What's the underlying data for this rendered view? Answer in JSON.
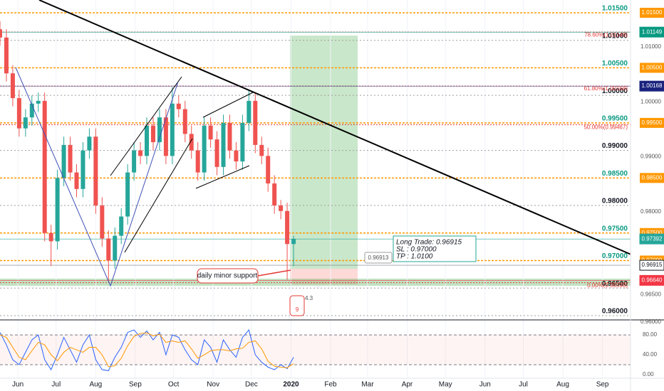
{
  "chart_data": {
    "type": "candlestick",
    "x": [
      -228,
      -223,
      -218,
      -213,
      -208,
      -203,
      -198,
      -193,
      -188,
      -183,
      -178,
      -173,
      -168,
      -163,
      -158,
      -153,
      -148,
      -143,
      -138,
      -133,
      -128,
      -123,
      -118,
      -113,
      -108,
      -103,
      -98,
      -93,
      -88,
      -83,
      -78,
      -73,
      -68,
      -63,
      -58,
      -53,
      -48,
      -43,
      -38,
      -33,
      -28,
      -23,
      -18,
      -13,
      -8,
      -3,
      2
    ],
    "open": [
      1.012,
      1.0105,
      1.004,
      0.9995,
      0.994,
      0.996,
      0.9985,
      0.999,
      0.975,
      0.9735,
      0.985,
      0.991,
      0.986,
      0.983,
      0.99,
      0.9925,
      0.98,
      0.974,
      0.97,
      0.9745,
      0.978,
      0.986,
      0.99,
      0.989,
      0.9945,
      0.9915,
      0.996,
      0.989,
      0.9985,
      0.9975,
      0.993,
      0.99,
      0.986,
      0.9945,
      0.992,
      0.987,
      0.995,
      0.99,
      0.988,
      0.995,
      0.999,
      0.991,
      0.989,
      0.984,
      0.98,
      0.979,
      0.973
    ],
    "high": [
      1.0135,
      1.012,
      1.0055,
      1.001,
      0.9975,
      1.0,
      1.0005,
      1.0005,
      0.9765,
      0.9865,
      0.9925,
      0.9925,
      0.9875,
      0.9915,
      0.994,
      0.994,
      0.9815,
      0.9755,
      0.976,
      0.9795,
      0.9875,
      0.9915,
      0.9915,
      0.996,
      0.996,
      0.9975,
      0.9975,
      1.0015,
      1.0,
      0.999,
      0.9945,
      0.9915,
      0.996,
      0.996,
      0.9935,
      0.9965,
      0.9965,
      0.9915,
      0.9965,
      1.001,
      1.0005,
      0.9925,
      0.9905,
      0.9855,
      0.981,
      0.9805,
      0.9745
    ],
    "low": [
      1.009,
      1.0025,
      0.998,
      0.9925,
      0.9925,
      0.9945,
      0.997,
      0.9735,
      0.969,
      0.972,
      0.9835,
      0.9845,
      0.9815,
      0.9815,
      0.9885,
      0.9785,
      0.9725,
      0.9662,
      0.9685,
      0.973,
      0.9765,
      0.9845,
      0.9875,
      0.9875,
      0.99,
      0.99,
      0.9875,
      0.9875,
      0.996,
      0.9915,
      0.9885,
      0.9845,
      0.9845,
      0.9905,
      0.9855,
      0.9855,
      0.9885,
      0.9865,
      0.9865,
      0.9935,
      0.9895,
      0.9875,
      0.9825,
      0.9785,
      0.9775,
      0.9665,
      0.969
    ],
    "close": [
      1.0105,
      1.004,
      0.9995,
      0.994,
      0.996,
      0.9985,
      0.999,
      0.975,
      0.9735,
      0.985,
      0.991,
      0.986,
      0.983,
      0.99,
      0.9925,
      0.98,
      0.974,
      0.97,
      0.9745,
      0.978,
      0.986,
      0.99,
      0.989,
      0.9945,
      0.9915,
      0.996,
      0.989,
      0.9985,
      0.9975,
      0.993,
      0.99,
      0.986,
      0.9945,
      0.992,
      0.987,
      0.995,
      0.99,
      0.988,
      0.995,
      0.999,
      0.991,
      0.989,
      0.984,
      0.98,
      0.979,
      0.973,
      0.9739
    ],
    "up_color": "#26a69a",
    "down_color": "#ef5350",
    "xlim": [
      -228,
      266
    ],
    "xticks": [
      {
        "value": -214,
        "label": "Jun"
      },
      {
        "value": -184,
        "label": "Jul"
      },
      {
        "value": -153,
        "label": "Aug"
      },
      {
        "value": -122,
        "label": "Sep"
      },
      {
        "value": -92,
        "label": "Oct"
      },
      {
        "value": -61,
        "label": "Nov"
      },
      {
        "value": -31,
        "label": "Dec"
      },
      {
        "value": 0,
        "label": "2020"
      },
      {
        "value": 31,
        "label": "Feb"
      },
      {
        "value": 60,
        "label": "Mar"
      },
      {
        "value": 91,
        "label": "Apr"
      },
      {
        "value": 121,
        "label": "May"
      },
      {
        "value": 152,
        "label": "Jun"
      },
      {
        "value": 182,
        "label": "Jul"
      },
      {
        "value": 213,
        "label": "Aug"
      },
      {
        "value": 244,
        "label": "Sep"
      }
    ],
    "ylim": [
      0.95922,
      1.01732
    ],
    "yticks": [
      {
        "value": 1.01,
        "label": "1.01000"
      },
      {
        "value": 1.0,
        "label": "1.00000"
      },
      {
        "value": 0.99,
        "label": "0.99000"
      },
      {
        "value": 0.98,
        "label": "0.98000"
      },
      {
        "value": 0.965,
        "label": "0.96500"
      },
      {
        "value": 0.96,
        "label": "0.96000"
      }
    ],
    "grid": true,
    "levels": [
      {
        "value": 1.015,
        "label": "1.01500"
      },
      {
        "value": 1.005,
        "label": "1.00500"
      },
      {
        "value": 0.995,
        "label": "0.99500"
      },
      {
        "value": 0.985,
        "label": "0.98500"
      },
      {
        "value": 0.975,
        "label": "0.97500"
      },
      {
        "value": 0.97,
        "label": "0.97000"
      }
    ],
    "level_color": "#ff9800",
    "fibs": [
      {
        "value": 1.01149,
        "label": "78.60%(1.01149)"
      },
      {
        "value": 1.00168,
        "label": "61.80%(1.00168)"
      },
      {
        "value": 0.99467,
        "label": "50.00%(0.99467)"
      },
      {
        "value": 0.96598,
        "label": "0.00%(0.96598)"
      }
    ],
    "fib_color": "#e53935",
    "tags": [
      {
        "value": 1.01149,
        "label": "1.01149",
        "color": "#089981"
      },
      {
        "value": 1.00168,
        "label": "1.00168",
        "color": "#1a237e"
      },
      {
        "value": 0.97392,
        "label": "0.97392",
        "color": "#26a69a"
      },
      {
        "value": 0.96915,
        "label": "0.96915",
        "color": "#ffffff"
      },
      {
        "value": 0.9664,
        "label": "0.96640",
        "color": "#f23645"
      }
    ],
    "annotations": [
      "daily minor support",
      "0.96913"
    ],
    "position_text": [
      "Long Trade: 0.96915",
      "SL : 0.97000",
      "TP : 1.0100"
    ],
    "event_labels": [
      "4.3",
      "9"
    ],
    "oscillator": {
      "k": [
        85,
        60,
        30,
        20,
        45,
        70,
        80,
        30,
        10,
        40,
        75,
        50,
        25,
        60,
        80,
        30,
        10,
        8,
        35,
        55,
        85,
        90,
        75,
        88,
        70,
        85,
        40,
        80,
        75,
        50,
        30,
        20,
        70,
        55,
        25,
        70,
        50,
        35,
        75,
        90,
        40,
        25,
        15,
        10,
        20,
        12,
        35
      ],
      "d": [
        80,
        75,
        55,
        35,
        30,
        48,
        65,
        60,
        40,
        28,
        45,
        55,
        50,
        45,
        55,
        55,
        40,
        16,
        18,
        33,
        58,
        77,
        83,
        84,
        78,
        81,
        65,
        68,
        65,
        68,
        52,
        33,
        40,
        48,
        50,
        50,
        48,
        52,
        53,
        65,
        68,
        52,
        27,
        17,
        15,
        14,
        22
      ],
      "k_color": "#2962ff",
      "d_color": "#ff9800",
      "ylim": [
        -4.3,
        103
      ],
      "yticks": [
        {
          "value": 80,
          "label": "80.00"
        },
        {
          "value": 40,
          "label": "40.00"
        },
        {
          "value": 0,
          "label": "0.00"
        }
      ],
      "band": [
        20,
        80
      ]
    }
  }
}
